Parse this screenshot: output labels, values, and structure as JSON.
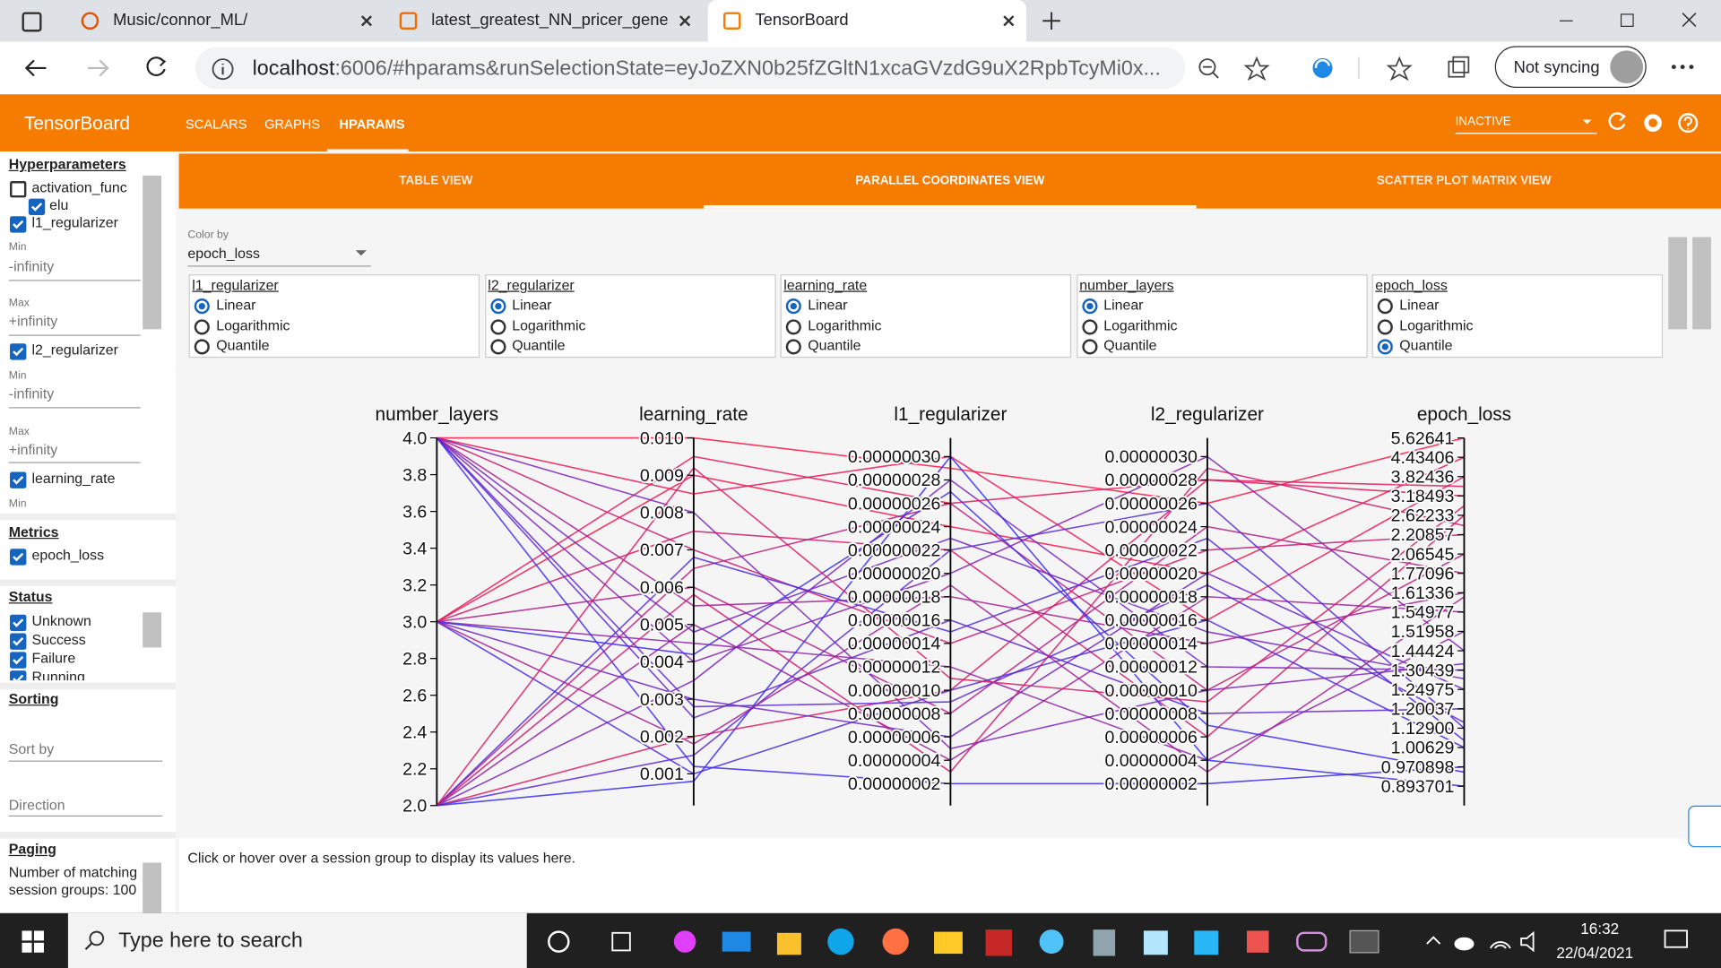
{
  "browser": {
    "tabs": [
      "Music/connor_ML/",
      "latest_greatest_NN_pricer_gener",
      "TensorBoard"
    ],
    "active_tab": 2,
    "url_host": "localhost",
    "url_rest": ":6006/#hparams&runSelectionState=eyJoZXN0b25fZGltN1xcaGVzdG9uX2RpbTcyMi0x...",
    "sync": "Not syncing"
  },
  "header": {
    "title": "TensorBoard",
    "nav": [
      "SCALARS",
      "GRAPHS",
      "HPARAMS"
    ],
    "active_nav": 2,
    "status": "INACTIVE"
  },
  "sidebar": {
    "hyperparameters": {
      "title": "Hyperparameters",
      "activation_func": "activation_func",
      "elu": "elu",
      "l1": "l1_regularizer",
      "l2": "l2_regularizer",
      "lr": "learning_rate",
      "min_label": "Min",
      "min_value": "-infinity",
      "max_label": "Max",
      "max_value": "+infinity"
    },
    "metrics": {
      "title": "Metrics",
      "items": [
        "epoch_loss"
      ]
    },
    "status": {
      "title": "Status",
      "items": [
        "Unknown",
        "Success",
        "Failure",
        "Running"
      ]
    },
    "sorting": {
      "title": "Sorting",
      "sort_by": "Sort by",
      "direction": "Direction"
    },
    "paging": {
      "title": "Paging",
      "text": "Number of matching session groups: 100"
    }
  },
  "views": {
    "tabs": [
      "TABLE VIEW",
      "PARALLEL COORDINATES VIEW",
      "SCATTER PLOT MATRIX VIEW"
    ],
    "active": 1
  },
  "color_by": {
    "label": "Color by",
    "value": "epoch_loss"
  },
  "scale_options": {
    "options": [
      "Linear",
      "Logarithmic",
      "Quantile"
    ],
    "columns": [
      {
        "name": "l1_regularizer",
        "selected": 0
      },
      {
        "name": "l2_regularizer",
        "selected": 0
      },
      {
        "name": "learning_rate",
        "selected": 0
      },
      {
        "name": "number_layers",
        "selected": 0
      },
      {
        "name": "epoch_loss",
        "selected": 2
      }
    ]
  },
  "parallel": {
    "color_low": "#2a2cff",
    "color_high": "#ff1744",
    "axes": [
      {
        "name": "number_layers",
        "scale": "linear",
        "ylim": [
          2,
          4
        ],
        "ticks": [
          {
            "value": 4,
            "label": "4.0"
          },
          3.8,
          3.6,
          3.4,
          3.2,
          {
            "value": 3,
            "label": "3.0"
          },
          2.8,
          2.6,
          2.4,
          2.2,
          {
            "value": 2,
            "label": "2.0"
          }
        ]
      },
      {
        "name": "learning_rate",
        "scale": "linear",
        "ylim": [
          0.00015,
          0.01
        ],
        "ticks": [
          {
            "value": 0.01,
            "label": "0.010"
          },
          0.009,
          0.008,
          0.007,
          0.006,
          0.005,
          0.004,
          0.003,
          0.002,
          0.001
        ]
      },
      {
        "name": "l1_regularizer",
        "scale": "linear",
        "ylim": [
          1.2e-09,
          3.16e-07
        ],
        "ticks": [
          {
            "value": 3e-07,
            "label": "0.00000030"
          },
          {
            "value": 2.8e-07,
            "label": "0.00000028"
          },
          {
            "value": 2.6e-07,
            "label": "0.00000026"
          },
          {
            "value": 2.4e-07,
            "label": "0.00000024"
          },
          {
            "value": 2.2e-07,
            "label": "0.00000022"
          },
          {
            "value": 2e-07,
            "label": "0.00000020"
          },
          {
            "value": 1.8e-07,
            "label": "0.00000018"
          },
          {
            "value": 1.6e-07,
            "label": "0.00000016"
          },
          {
            "value": 1.4e-07,
            "label": "0.00000014"
          },
          {
            "value": 1.2e-07,
            "label": "0.00000012"
          },
          {
            "value": 1e-07,
            "label": "0.00000010"
          },
          {
            "value": 8e-08,
            "label": "0.00000008"
          },
          {
            "value": 6e-08,
            "label": "0.00000006"
          },
          {
            "value": 4e-08,
            "label": "0.00000004"
          },
          {
            "value": 2e-08,
            "label": "0.00000002"
          }
        ]
      },
      {
        "name": "l2_regularizer",
        "scale": "linear",
        "ylim": [
          1.2e-09,
          3.16e-07
        ],
        "ticks": [
          {
            "value": 3e-07,
            "label": "0.00000030"
          },
          {
            "value": 2.8e-07,
            "label": "0.00000028"
          },
          {
            "value": 2.6e-07,
            "label": "0.00000026"
          },
          {
            "value": 2.4e-07,
            "label": "0.00000024"
          },
          {
            "value": 2.2e-07,
            "label": "0.00000022"
          },
          {
            "value": 2e-07,
            "label": "0.00000020"
          },
          {
            "value": 1.8e-07,
            "label": "0.00000018"
          },
          {
            "value": 1.6e-07,
            "label": "0.00000016"
          },
          {
            "value": 1.4e-07,
            "label": "0.00000014"
          },
          {
            "value": 1.2e-07,
            "label": "0.00000012"
          },
          {
            "value": 1e-07,
            "label": "0.00000010"
          },
          {
            "value": 8e-08,
            "label": "0.00000008"
          },
          {
            "value": 6e-08,
            "label": "0.00000006"
          },
          {
            "value": 4e-08,
            "label": "0.00000004"
          },
          {
            "value": 2e-08,
            "label": "0.00000002"
          }
        ]
      },
      {
        "name": "epoch_loss",
        "scale": "quantile",
        "ticks": [
          5.62641,
          4.43406,
          3.82436,
          3.18493,
          2.62233,
          2.20857,
          2.06545,
          1.77096,
          1.61336,
          1.54977,
          1.51958,
          1.44424,
          1.30439,
          1.24975,
          1.20037,
          {
            "value": 1.129,
            "label": "1.12900"
          },
          1.00629,
          0.970898,
          0.893701
        ]
      }
    ],
    "sessions": [
      [
        4,
        0.01,
        2.9e-07,
        2.6e-07,
        5.62641
      ],
      [
        3,
        0.009,
        2.4e-07,
        2e-07,
        4.43406
      ],
      [
        4,
        0.0085,
        3e-07,
        1.6e-07,
        3.82436
      ],
      [
        2,
        0.002,
        1e-07,
        2.8e-07,
        3.18493
      ],
      [
        3,
        0.0075,
        2.2e-07,
        6e-08,
        2.62233
      ],
      [
        4,
        0.007,
        1.4e-07,
        2.2e-07,
        2.20857
      ],
      [
        2,
        0.0065,
        2.6e-07,
        1e-07,
        2.06545
      ],
      [
        3,
        0.006,
        8e-08,
        2.4e-07,
        1.77096
      ],
      [
        4,
        0.0055,
        1.8e-07,
        1.4e-07,
        1.61336
      ],
      [
        2,
        0.005,
        4e-08,
        1.8e-07,
        1.54977
      ],
      [
        3,
        0.0045,
        1.2e-07,
        4e-08,
        1.51958
      ],
      [
        4,
        0.004,
        2e-07,
        3e-07,
        1.44424
      ],
      [
        2,
        0.0035,
        2.8e-07,
        1.2e-07,
        1.30439
      ],
      [
        3,
        0.003,
        6e-08,
        2e-07,
        1.24975
      ],
      [
        4,
        0.0025,
        1.6e-07,
        8e-08,
        1.20037
      ],
      [
        2,
        0.0015,
        2.2e-07,
        2.6e-07,
        1.129
      ],
      [
        3,
        0.001,
        1e-07,
        1.6e-07,
        1.00629
      ],
      [
        4,
        0.0012,
        2e-08,
        2e-08,
        0.970898
      ],
      [
        2,
        0.0008,
        3e-07,
        4e-08,
        0.893701
      ],
      [
        3,
        0.0095,
        2.6e-07,
        2.8e-07,
        3.5
      ],
      [
        4,
        0.008,
        5e-08,
        1e-07,
        1.35
      ],
      [
        2,
        0.0068,
        1.5e-07,
        2.3e-07,
        1.05
      ],
      [
        3,
        0.0042,
        2.7e-07,
        7e-08,
        0.95
      ],
      [
        4,
        0.0028,
        9e-08,
        1.9e-07,
        1.15
      ],
      [
        2,
        0.0058,
        3e-08,
        2.9e-07,
        2.4
      ],
      [
        3,
        0.0018,
        1.9e-07,
        3e-08,
        1.6
      ],
      [
        4,
        0.0048,
        2.3e-07,
        1.5e-07,
        1.28
      ],
      [
        2,
        0.0092,
        1.1e-07,
        9e-08,
        2.9
      ]
    ]
  },
  "hint": "Click or hover over a session group to display its values here.",
  "taskbar": {
    "search": "Type here to search",
    "time": "16:32",
    "date": "22/04/2021"
  }
}
